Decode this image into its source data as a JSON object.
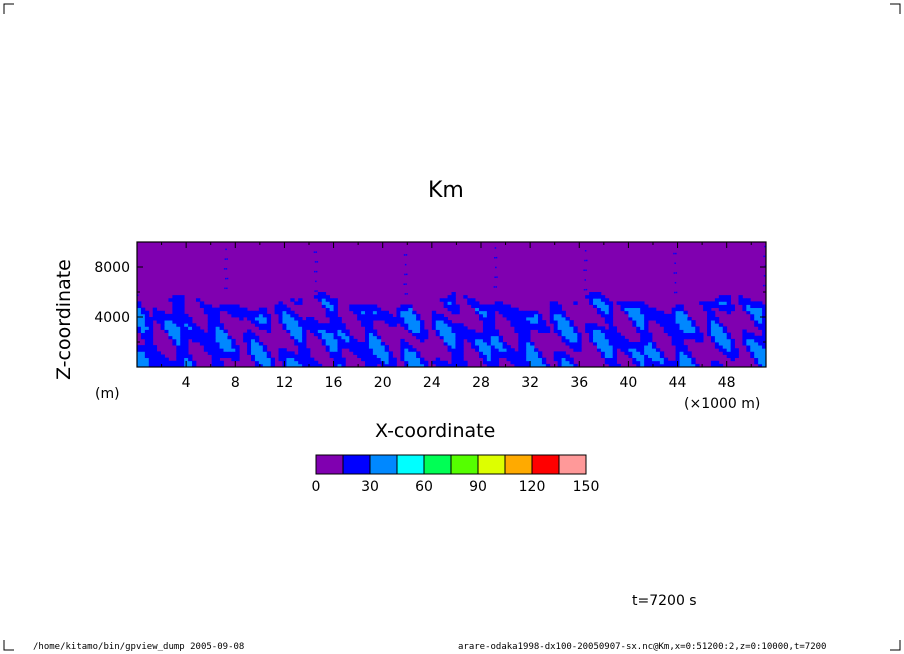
{
  "chart_data": {
    "type": "heatmap",
    "title": "Km",
    "xlabel": "X-coordinate",
    "ylabel": "Z-coordinate",
    "x_unit": "(×1000 m)",
    "y_unit": "(m)",
    "xlim": [
      0,
      51.2
    ],
    "ylim": [
      0,
      10000
    ],
    "x_ticks": [
      4,
      8,
      12,
      16,
      20,
      24,
      28,
      32,
      36,
      40,
      44,
      48
    ],
    "y_ticks": [
      4000,
      8000
    ],
    "colorbar": {
      "levels": [
        0,
        15,
        30,
        45,
        60,
        75,
        90,
        105,
        120,
        135,
        150
      ],
      "labels": [
        "0",
        "30",
        "60",
        "90",
        "120",
        "150"
      ],
      "label_values": [
        0,
        30,
        60,
        90,
        120,
        150
      ],
      "colors": [
        "#8000b0",
        "#0000ff",
        "#0088ff",
        "#00ffff",
        "#00ff55",
        "#55ff00",
        "#ddff00",
        "#ffaa00",
        "#ff0000",
        "#ff9999"
      ]
    },
    "field_note": "upper layer (z > ~5500 m) mostly 0-15; lower layer (z < ~5500 m) turbulent mix of 0-15, 15-30, 30-45"
  },
  "annotation": "t=7200 s",
  "footer": {
    "left": "/home/kitamo/bin/gpview_dump  2005-09-08",
    "right": "arare-odaka1998-dx100-20050907-sx.nc@Km,x=0:51200:2,z=0:10000,t=7200"
  }
}
